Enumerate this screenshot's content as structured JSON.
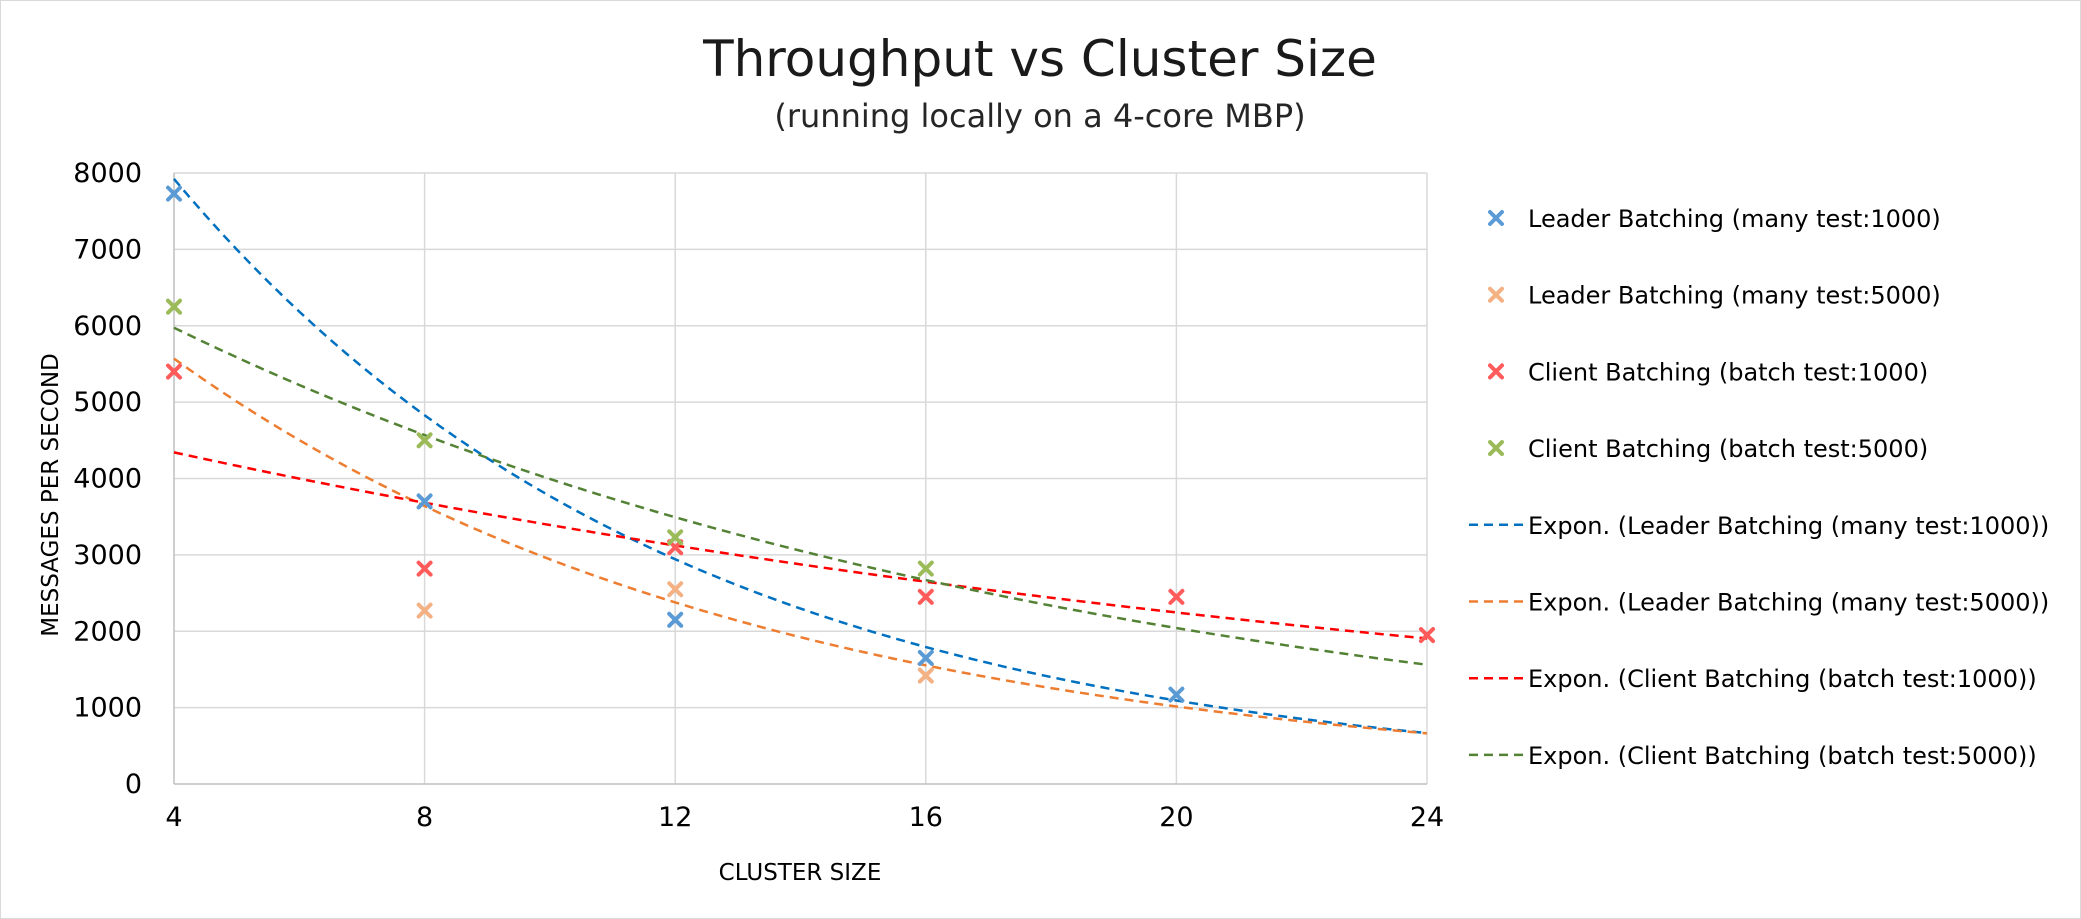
{
  "chart_data": {
    "type": "scatter",
    "title": "Throughput vs Cluster Size",
    "subtitle": "(running locally on a 4-core MBP)",
    "xlabel": "CLUSTER SIZE",
    "ylabel": "MESSAGES PER SECOND",
    "xlim": [
      4,
      24
    ],
    "ylim": [
      0,
      8000
    ],
    "x_ticks": [
      4,
      8,
      12,
      16,
      20,
      24
    ],
    "y_ticks": [
      0,
      1000,
      2000,
      3000,
      4000,
      5000,
      6000,
      7000,
      8000
    ],
    "grid": true,
    "legend_position": "right",
    "series": [
      {
        "name": "Leader Batching (many test:1000)",
        "color": "#5b9bd5",
        "marker": "x",
        "points": [
          [
            4,
            7730
          ],
          [
            8,
            3700
          ],
          [
            12,
            2150
          ],
          [
            16,
            1650
          ],
          [
            20,
            1170
          ]
        ]
      },
      {
        "name": "Leader Batching (many test:5000)",
        "color": "#f4b183",
        "marker": "x",
        "points": [
          [
            8,
            2270
          ],
          [
            12,
            2550
          ],
          [
            16,
            1420
          ]
        ]
      },
      {
        "name": "Client Batching (batch test:1000)",
        "color": "#ff5b5b",
        "marker": "x",
        "points": [
          [
            4,
            5400
          ],
          [
            8,
            2820
          ],
          [
            12,
            3100
          ],
          [
            16,
            2450
          ],
          [
            20,
            2450
          ],
          [
            24,
            1950
          ]
        ]
      },
      {
        "name": "Client Batching (batch test:5000)",
        "color": "#9bbb59",
        "marker": "x",
        "points": [
          [
            4,
            6250
          ],
          [
            8,
            4500
          ],
          [
            12,
            3230
          ],
          [
            16,
            2820
          ]
        ]
      }
    ],
    "trendlines": [
      {
        "name": "Expon.  (Leader Batching (many test:1000))",
        "color": "#0070c0",
        "dash": true,
        "type": "exponential",
        "a": 13000,
        "b": -0.1238,
        "x_range": [
          4,
          24
        ]
      },
      {
        "name": "Expon.  (Leader Batching (many test:5000))",
        "color": "#ed7d31",
        "dash": true,
        "type": "exponential",
        "a": 8525,
        "b": -0.1064,
        "x_range": [
          4,
          24
        ]
      },
      {
        "name": "Expon.  (Client Batching (batch test:1000))",
        "color": "#ff0000",
        "dash": true,
        "type": "exponential",
        "a": 5120,
        "b": -0.0412,
        "x_range": [
          4,
          24
        ]
      },
      {
        "name": "Expon.  (Client Batching (batch test:5000))",
        "color": "#548235",
        "dash": true,
        "type": "exponential",
        "a": 7814,
        "b": -0.0671,
        "x_range": [
          4,
          24
        ]
      }
    ]
  }
}
